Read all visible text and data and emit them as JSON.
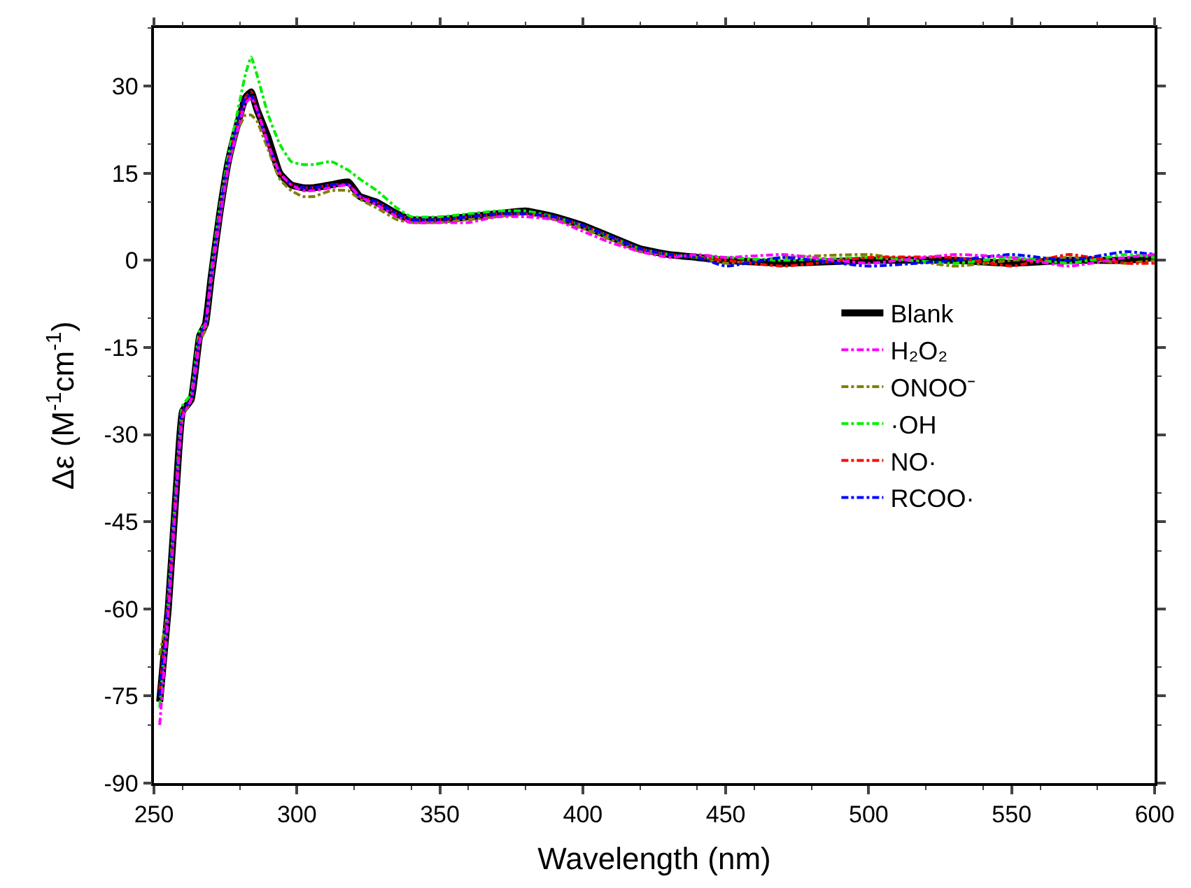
{
  "chart_data": {
    "type": "line",
    "xlabel": "Wavelength (nm)",
    "ylabel": "Δε (M$^{-1}$cm$^{-1}$)",
    "x": [
      252,
      255,
      258,
      260,
      263,
      266,
      268,
      270,
      273,
      276,
      279,
      282,
      284,
      286,
      290,
      294,
      298,
      302,
      306,
      312,
      318,
      322,
      328,
      335,
      340,
      350,
      360,
      370,
      380,
      390,
      400,
      410,
      420,
      430,
      440,
      450,
      470,
      500,
      530,
      550,
      570,
      590,
      600
    ],
    "xlim": [
      250,
      600
    ],
    "xticks": [
      250,
      300,
      350,
      400,
      450,
      500,
      550,
      600
    ],
    "ylim": [
      -90,
      40
    ],
    "yticks": [
      -90,
      -75,
      -60,
      -45,
      -30,
      -15,
      0,
      15,
      30
    ],
    "legend": "right",
    "marker": "none",
    "series": [
      {
        "name": "Blank",
        "color": "#000000",
        "line_style": "solid",
        "values": [
          -76,
          -60,
          -38,
          -26,
          -24,
          -13,
          -11,
          -3,
          8,
          17,
          23,
          28,
          29,
          26,
          21,
          15,
          13,
          12.5,
          12.5,
          13,
          13.5,
          11,
          10,
          8,
          7,
          7,
          7.5,
          8,
          8.5,
          7.5,
          6,
          4,
          2,
          1,
          0.5,
          0,
          -0.5,
          0,
          0,
          -0.5,
          0,
          0,
          0.5
        ]
      },
      {
        "name": "H₂O₂",
        "color": "#ff00ff",
        "line_style": "dashdot",
        "values": [
          -80,
          -61,
          -39,
          -27,
          -24,
          -14,
          -11,
          -3,
          7,
          16,
          22,
          27,
          28,
          26,
          20,
          15,
          13,
          12,
          12,
          12.5,
          13,
          11,
          9.5,
          7.5,
          6.5,
          6.5,
          6.5,
          7.5,
          7.5,
          7,
          5,
          3,
          1.5,
          0.5,
          1,
          0.5,
          1,
          -0.5,
          1,
          0.5,
          -1,
          0.5,
          1
        ]
      },
      {
        "name": "ONOO⁻",
        "color": "#808000",
        "line_style": "dashdot",
        "values": [
          -68,
          -60,
          -38,
          -27,
          -24,
          -14,
          -12,
          -4,
          7,
          16,
          22,
          25,
          25,
          24,
          19,
          14,
          12,
          11,
          11,
          12,
          12,
          10.5,
          9,
          7,
          6.5,
          6.5,
          7,
          7.5,
          8,
          7,
          5.5,
          3.5,
          1.5,
          1,
          0.5,
          -0.5,
          0.5,
          1,
          -1,
          0,
          0.5,
          -0.5,
          0
        ]
      },
      {
        "name": "·OH",
        "color": "#00ee00",
        "line_style": "dashdot",
        "values": [
          -77,
          -58,
          -37,
          -25,
          -23,
          -12,
          -11,
          -2,
          9,
          18,
          25,
          32,
          35,
          32,
          25,
          20,
          17,
          16.5,
          16.5,
          17,
          15.5,
          14,
          12,
          9,
          7.5,
          7.5,
          8,
          8.5,
          8.5,
          7.5,
          6,
          4,
          2,
          1,
          0.5,
          0.5,
          0,
          0.5,
          -0.5,
          0.5,
          -0.5,
          1,
          0.5
        ]
      },
      {
        "name": "NO·",
        "color": "#ff0000",
        "line_style": "dashdot",
        "values": [
          -74,
          -59,
          -38,
          -26,
          -24,
          -13,
          -11,
          -3,
          8,
          17,
          23,
          28,
          29,
          26,
          20,
          15,
          13,
          12.5,
          12.5,
          13,
          13,
          11,
          10,
          8,
          7,
          7,
          7.5,
          8,
          8,
          7.5,
          6,
          4,
          2,
          1,
          0.5,
          0,
          -1,
          0.5,
          0.5,
          -1,
          1,
          -0.5,
          -0.5
        ]
      },
      {
        "name": "RCOO·",
        "color": "#0000ff",
        "line_style": "dashdot",
        "values": [
          -75,
          -59,
          -38,
          -26,
          -24,
          -13,
          -11,
          -3,
          8,
          17,
          23,
          28,
          28.5,
          26,
          20,
          15,
          13,
          12.5,
          12.5,
          13,
          13,
          11,
          10,
          8,
          7,
          7,
          7.5,
          8,
          8,
          7.5,
          6,
          4,
          2,
          1,
          0.5,
          -1,
          0.5,
          -1,
          0,
          1,
          0,
          1.5,
          1
        ]
      }
    ]
  }
}
